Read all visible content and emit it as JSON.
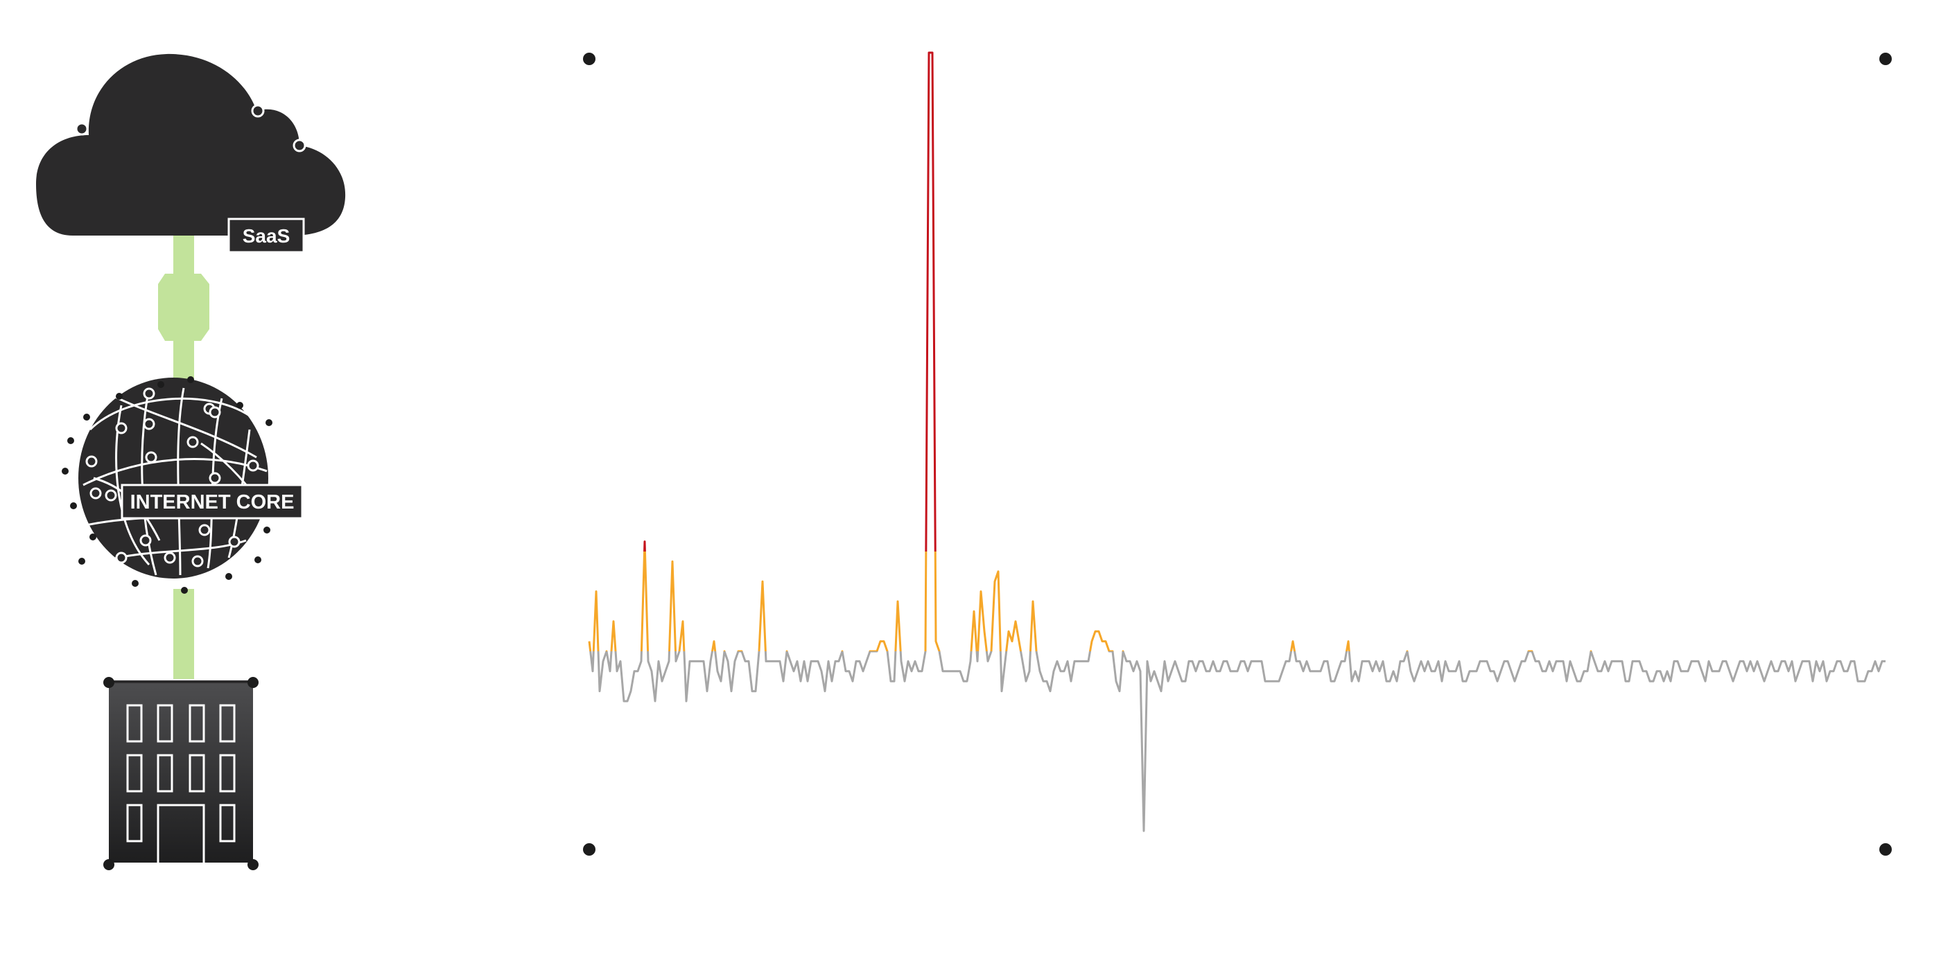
{
  "labels": {
    "saas": "SaaS",
    "internet_core": "INTERNET CORE"
  },
  "colors": {
    "dark": "#2b2a2b",
    "link_green": "#c2e39b",
    "baseline_gray": "#a7a7a7",
    "warn_orange": "#f6a729",
    "critical_red": "#c5131c",
    "dot": "#1c1c1c"
  },
  "icons": [
    "cloud-icon",
    "globe-icon",
    "building-icon"
  ],
  "chart_data": {
    "type": "line",
    "title": "",
    "xlabel": "",
    "ylabel": "",
    "grid": false,
    "legend": "none",
    "thresholds": {
      "warning": 0,
      "critical": 10
    },
    "ylim": [
      -18,
      60
    ],
    "series": [
      {
        "values": [
          1,
          -2,
          6,
          -4,
          -1,
          0,
          -2,
          3,
          -2,
          -1,
          -5,
          -5,
          -4,
          -2,
          -2,
          -1,
          11,
          -1,
          -2,
          -5,
          -1,
          -3,
          -2,
          -1,
          9,
          -1,
          0,
          3,
          -5,
          -1,
          -1,
          -1,
          -1,
          -1,
          -4,
          -1,
          1,
          -2,
          -3,
          0,
          -1,
          -4,
          -1,
          0,
          0,
          -1,
          -1,
          -4,
          -4,
          0,
          7,
          -1,
          -1,
          -1,
          -1,
          -1,
          -3,
          0,
          -1,
          -2,
          -1,
          -3,
          -1,
          -3,
          -1,
          -1,
          -1,
          -2,
          -4,
          -1,
          -3,
          -1,
          -1,
          0,
          -2,
          -2,
          -3,
          -1,
          -1,
          -2,
          -1,
          0,
          0,
          0,
          1,
          1,
          0,
          -3,
          -3,
          5,
          -1,
          -3,
          -1,
          -2,
          -1,
          -2,
          -2,
          0,
          60,
          60,
          1,
          0,
          -2,
          -2,
          -2,
          -2,
          -2,
          -2,
          -3,
          -3,
          -1,
          4,
          -1,
          6,
          2,
          -1,
          0,
          7,
          8,
          -4,
          -1,
          2,
          1,
          3,
          1,
          -1,
          -3,
          -2,
          5,
          0,
          -2,
          -3,
          -3,
          -4,
          -2,
          -1,
          -2,
          -2,
          -1,
          -3,
          -1,
          -1,
          -1,
          -1,
          -1,
          1,
          2,
          2,
          1,
          1,
          0,
          0,
          -3,
          -4,
          0,
          -1,
          -1,
          -2,
          -1,
          -2,
          -18,
          -1,
          -3,
          -2,
          -3,
          -4,
          -1,
          -3,
          -2,
          -1,
          -2,
          -3,
          -3,
          -1,
          -1,
          -2,
          -1,
          -1,
          -2,
          -2,
          -1,
          -2,
          -2,
          -1,
          -1,
          -2,
          -2,
          -2,
          -1,
          -1,
          -2,
          -1,
          -1,
          -1,
          -1,
          -3,
          -3,
          -3,
          -3,
          -3,
          -2,
          -1,
          -1,
          1,
          -1,
          -1,
          -2,
          -1,
          -2,
          -2,
          -2,
          -2,
          -1,
          -1,
          -3,
          -3,
          -2,
          -1,
          -1,
          1,
          -3,
          -2,
          -3,
          -1,
          -1,
          -1,
          -2,
          -1,
          -2,
          -1,
          -3,
          -3,
          -2,
          -3,
          -1,
          -1,
          0,
          -2,
          -3,
          -2,
          -1,
          -2,
          -1,
          -2,
          -2,
          -1,
          -3,
          -1,
          -2,
          -2,
          -2,
          -1,
          -3,
          -3,
          -2,
          -2,
          -2,
          -1,
          -1,
          -1,
          -2,
          -2,
          -3,
          -2,
          -1,
          -1,
          -2,
          -3,
          -2,
          -1,
          -1,
          0,
          0,
          -1,
          -1,
          -2,
          -2,
          -1,
          -2,
          -1,
          -1,
          -1,
          -3,
          -1,
          -2,
          -3,
          -3,
          -2,
          -2,
          0,
          -1,
          -2,
          -2,
          -1,
          -2,
          -1,
          -1,
          -1,
          -1,
          -3,
          -3,
          -1,
          -1,
          -1,
          -2,
          -2,
          -3,
          -3,
          -2,
          -2,
          -3,
          -2,
          -3,
          -1,
          -1,
          -2,
          -2,
          -2,
          -1,
          -1,
          -1,
          -2,
          -3,
          -1,
          -2,
          -2,
          -2,
          -1,
          -1,
          -2,
          -3,
          -2,
          -1,
          -1,
          -2,
          -1,
          -2,
          -1,
          -2,
          -3,
          -2,
          -1,
          -2,
          -2,
          -1,
          -1,
          -2,
          -1,
          -3,
          -2,
          -1,
          -1,
          -1,
          -3,
          -1,
          -2,
          -1,
          -3,
          -2,
          -2,
          -1,
          -1,
          -2,
          -2,
          -1,
          -1,
          -3,
          -3,
          -3,
          -2,
          -2,
          -1,
          -2,
          -1,
          -1
        ]
      }
    ]
  }
}
